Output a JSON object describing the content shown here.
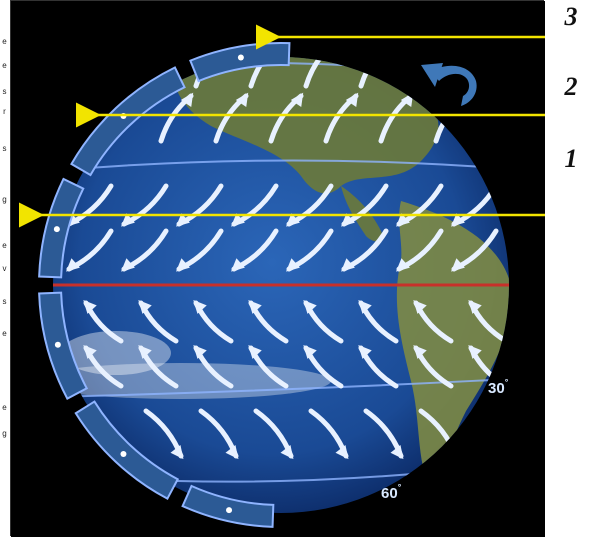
{
  "figure": {
    "cell_labels": [
      {
        "id": "3",
        "text": "3"
      },
      {
        "id": "2",
        "text": "2"
      },
      {
        "id": "1",
        "text": "1"
      }
    ],
    "latitude_labels": [
      {
        "value": "30",
        "unit": "°"
      },
      {
        "value": "60",
        "unit": "°"
      }
    ],
    "left_margin_fragment": "e e s r s g e v s e e g",
    "colors": {
      "space": "#000000",
      "ocean": "#1f4f9a",
      "ocean_dark": "#0b2457",
      "land": "#6a7a3a",
      "wind_arrow": "#e8f1ff",
      "cell_band": "#2c5a95",
      "equator": "#c8302a",
      "pointer": "#f2e400",
      "rotation_arrow": "#3f78b8"
    }
  }
}
